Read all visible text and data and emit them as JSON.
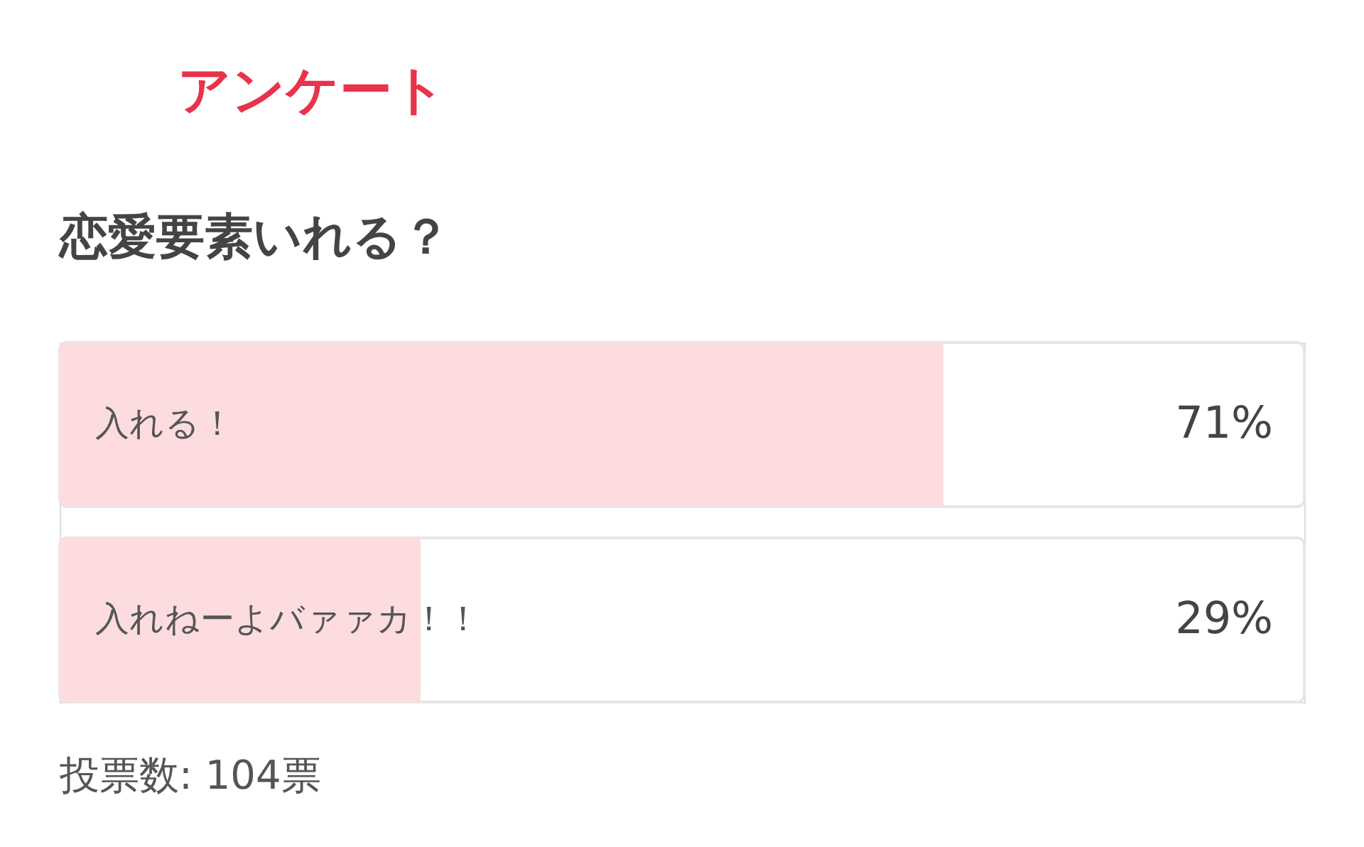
{
  "chart_data": {
    "type": "bar",
    "orientation": "horizontal",
    "title": "アンケート",
    "subtitle": "恋愛要素いれる？",
    "categories": [
      "入れる！",
      "入れねーよバァァカ！！"
    ],
    "values": [
      71,
      29
    ],
    "value_labels": [
      "71%",
      "29%"
    ],
    "color": "#fddce0",
    "xlim": [
      0,
      100
    ],
    "annotations": [
      "投票数: 104票"
    ]
  }
}
